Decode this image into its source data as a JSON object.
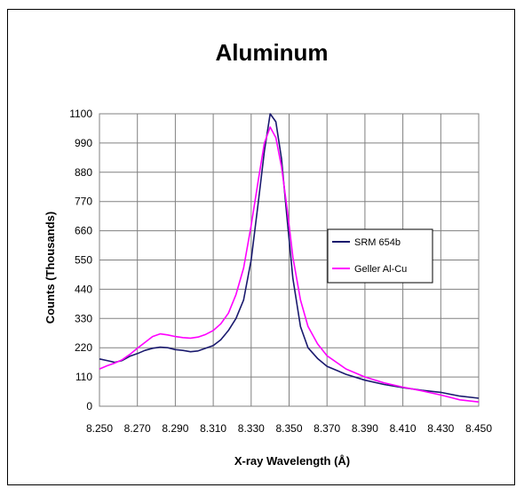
{
  "chart_data": {
    "type": "line",
    "title": "Aluminum",
    "xlabel": "X-ray Wavelength (Å)",
    "ylabel": "Counts (Thousands)",
    "xlim": [
      8.25,
      8.45
    ],
    "ylim": [
      0,
      1100
    ],
    "x_ticks": [
      "8.250",
      "8.270",
      "8.290",
      "8.310",
      "8.330",
      "8.350",
      "8.370",
      "8.390",
      "8.410",
      "8.430",
      "8.450"
    ],
    "y_ticks": [
      "0",
      "110",
      "220",
      "330",
      "440",
      "550",
      "660",
      "770",
      "880",
      "990",
      "1100"
    ],
    "grid": true,
    "legend_position": "right",
    "series": [
      {
        "name": "SRM 654b",
        "color": "#1a1a6e",
        "points": [
          [
            8.25,
            178
          ],
          [
            8.254,
            172
          ],
          [
            8.258,
            165
          ],
          [
            8.262,
            172
          ],
          [
            8.266,
            188
          ],
          [
            8.27,
            198
          ],
          [
            8.274,
            210
          ],
          [
            8.278,
            218
          ],
          [
            8.282,
            222
          ],
          [
            8.286,
            220
          ],
          [
            8.29,
            213
          ],
          [
            8.294,
            210
          ],
          [
            8.298,
            205
          ],
          [
            8.302,
            208
          ],
          [
            8.306,
            218
          ],
          [
            8.31,
            228
          ],
          [
            8.314,
            250
          ],
          [
            8.318,
            285
          ],
          [
            8.322,
            330
          ],
          [
            8.326,
            400
          ],
          [
            8.33,
            550
          ],
          [
            8.334,
            780
          ],
          [
            8.337,
            960
          ],
          [
            8.34,
            1100
          ],
          [
            8.343,
            1070
          ],
          [
            8.346,
            930
          ],
          [
            8.349,
            700
          ],
          [
            8.352,
            480
          ],
          [
            8.356,
            300
          ],
          [
            8.36,
            220
          ],
          [
            8.365,
            180
          ],
          [
            8.37,
            150
          ],
          [
            8.38,
            120
          ],
          [
            8.39,
            98
          ],
          [
            8.4,
            82
          ],
          [
            8.41,
            70
          ],
          [
            8.42,
            60
          ],
          [
            8.43,
            52
          ],
          [
            8.44,
            38
          ],
          [
            8.45,
            30
          ]
        ]
      },
      {
        "name": "Geller Al-Cu",
        "color": "#ff00ff",
        "points": [
          [
            8.25,
            140
          ],
          [
            8.254,
            152
          ],
          [
            8.258,
            162
          ],
          [
            8.262,
            175
          ],
          [
            8.266,
            195
          ],
          [
            8.27,
            218
          ],
          [
            8.274,
            240
          ],
          [
            8.278,
            262
          ],
          [
            8.282,
            272
          ],
          [
            8.286,
            268
          ],
          [
            8.29,
            262
          ],
          [
            8.294,
            258
          ],
          [
            8.298,
            256
          ],
          [
            8.302,
            260
          ],
          [
            8.306,
            270
          ],
          [
            8.31,
            285
          ],
          [
            8.314,
            310
          ],
          [
            8.318,
            350
          ],
          [
            8.322,
            420
          ],
          [
            8.326,
            520
          ],
          [
            8.33,
            680
          ],
          [
            8.334,
            860
          ],
          [
            8.337,
            990
          ],
          [
            8.34,
            1050
          ],
          [
            8.343,
            1010
          ],
          [
            8.346,
            900
          ],
          [
            8.349,
            740
          ],
          [
            8.352,
            560
          ],
          [
            8.356,
            400
          ],
          [
            8.36,
            300
          ],
          [
            8.365,
            235
          ],
          [
            8.37,
            190
          ],
          [
            8.38,
            140
          ],
          [
            8.39,
            110
          ],
          [
            8.4,
            88
          ],
          [
            8.41,
            72
          ],
          [
            8.42,
            58
          ],
          [
            8.43,
            42
          ],
          [
            8.44,
            24
          ],
          [
            8.45,
            16
          ]
        ]
      }
    ]
  }
}
